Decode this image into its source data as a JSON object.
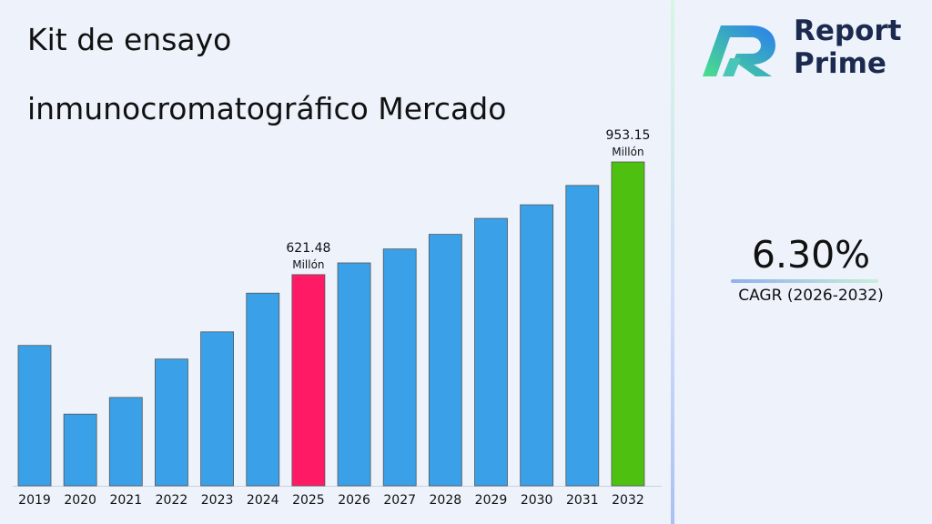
{
  "title_line1": "Kit de ensayo",
  "title_line2": "inmunocromatográfico Mercado",
  "logo": {
    "line1": "Report",
    "line2": "Prime",
    "icon": "report-prime-logo-icon"
  },
  "cagr": {
    "value": "6.30%",
    "label": "CAGR (2026-2032)"
  },
  "colors": {
    "bar": "#3aa0e8",
    "highlight_2025": "#ff1a66",
    "highlight_2032": "#4ec010"
  },
  "chart_data": {
    "type": "bar",
    "categories": [
      "2019",
      "2020",
      "2021",
      "2022",
      "2023",
      "2024",
      "2025",
      "2026",
      "2027",
      "2028",
      "2029",
      "2030",
      "2031",
      "2032"
    ],
    "values": [
      413,
      211,
      260,
      373,
      453,
      567,
      621.48,
      656,
      697,
      740,
      787,
      827,
      884,
      953.15
    ],
    "ylim": [
      0,
      1000
    ],
    "annotations": [
      {
        "category": "2025",
        "value": "621.48",
        "unit": "Millón"
      },
      {
        "category": "2032",
        "value": "953.15",
        "unit": "Millón"
      }
    ],
    "title": "Kit de ensayo inmunocromatográfico Mercado",
    "xlabel": "",
    "ylabel": "",
    "grid": false,
    "legend": "none"
  }
}
